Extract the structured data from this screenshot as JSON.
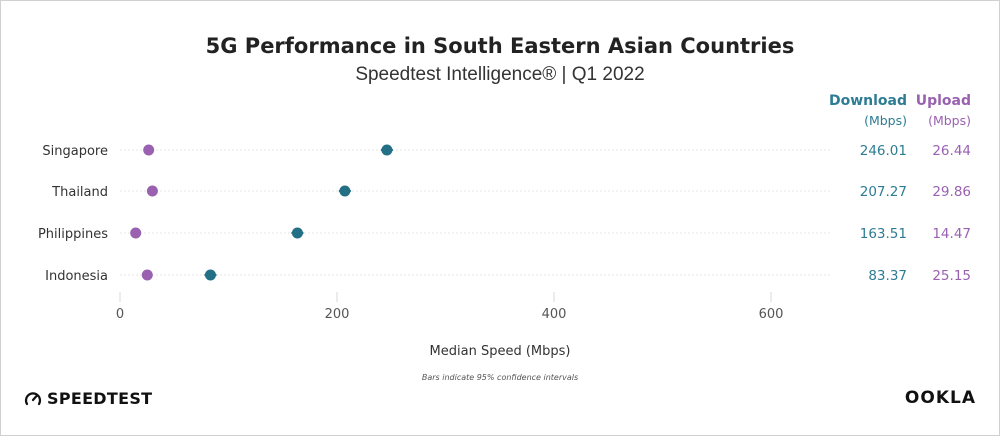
{
  "header": {
    "title": "5G Performance in South Eastern Asian Countries",
    "subtitle": "Speedtest Intelligence® | Q1 2022"
  },
  "columns": {
    "download_label": "Download",
    "download_unit": "(Mbps)",
    "upload_label": "Upload",
    "upload_unit": "(Mbps)"
  },
  "colors": {
    "download": "#236f86",
    "upload": "#9a61b0",
    "download_text": "#2e7c94",
    "upload_text": "#9a61b0",
    "grid": "#d8d8d8"
  },
  "footer": {
    "axis_title": "Median Speed (Mbps)",
    "note": "Bars indicate 95% confidence intervals",
    "brand_left": "SPEEDTEST",
    "brand_left_icon": "gauge-icon",
    "brand_right": "OOKLA"
  },
  "chart_data": {
    "type": "scatter",
    "categories": [
      "Singapore",
      "Thailand",
      "Philippines",
      "Indonesia"
    ],
    "series": [
      {
        "name": "Download",
        "values": [
          246.01,
          207.27,
          163.51,
          83.37
        ],
        "value_labels": [
          "246.01",
          "207.27",
          "163.51",
          "83.37"
        ]
      },
      {
        "name": "Upload",
        "values": [
          26.44,
          29.86,
          14.47,
          25.15
        ],
        "value_labels": [
          "26.44",
          "29.86",
          "14.47",
          "25.15"
        ]
      }
    ],
    "xlabel": "Median Speed (Mbps)",
    "xlim": [
      0,
      650
    ],
    "xticks": [
      0,
      200,
      400,
      600
    ],
    "xtick_labels": [
      "0",
      "200",
      "400",
      "600"
    ],
    "grid": true
  }
}
